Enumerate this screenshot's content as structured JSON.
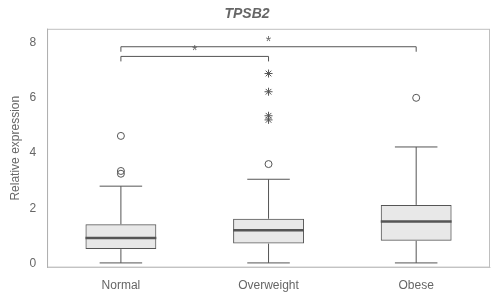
{
  "chart_data": {
    "type": "box",
    "title": "TPSB2",
    "ylabel": "Relative expression",
    "categories": [
      "Normal",
      "Overweight",
      "Obese"
    ],
    "boxes": [
      {
        "q1": 0.52,
        "median": 0.92,
        "q3": 1.42,
        "whisker_low": 0.02,
        "whisker_high": 2.8
      },
      {
        "q1": 0.72,
        "median": 1.2,
        "q3": 1.62,
        "whisker_low": 0.02,
        "whisker_high": 3.05
      },
      {
        "q1": 0.82,
        "median": 1.52,
        "q3": 2.12,
        "whisker_low": 0.02,
        "whisker_high": 4.22
      }
    ],
    "fliers": [
      {
        "marker": "circle",
        "values": [
          [
            3.25,
            3.35,
            4.62
          ],
          [
            3.6
          ],
          [
            6.0
          ]
        ]
      },
      {
        "marker": "star",
        "values": [
          [],
          [
            5.2,
            5.35,
            6.22,
            6.88
          ],
          []
        ]
      }
    ],
    "annotations": [
      {
        "type": "bracket",
        "from": "Normal",
        "to": "Overweight",
        "y": 7.5,
        "label": "*"
      },
      {
        "type": "bracket",
        "from": "Normal",
        "to": "Obese",
        "y": 7.85,
        "label": "*"
      }
    ],
    "color": "#555555",
    "ylim": [
      -0.15,
      8.5
    ],
    "yticks": [
      0,
      2,
      4,
      6,
      8
    ],
    "grid": false
  }
}
